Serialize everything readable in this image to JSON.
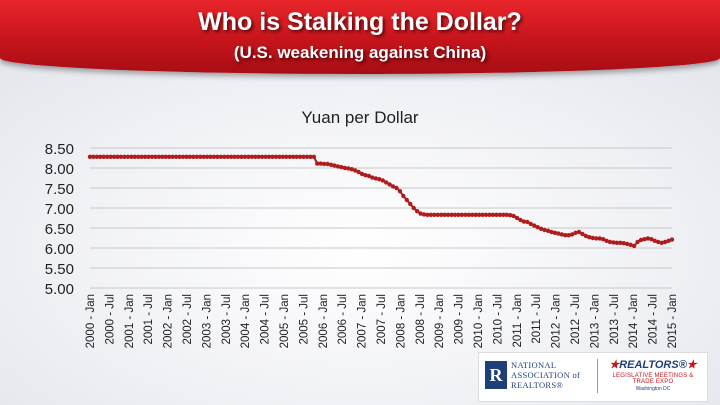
{
  "header": {
    "title": "Who is Stalking the Dollar?",
    "subtitle": "(U.S. weakening against China)"
  },
  "logos": {
    "nar_mark": "R",
    "nar_name": "NATIONAL ASSOCIATION of REALTORS®",
    "meeting_brand": "REALTORS®",
    "meeting_line": "LEGISLATIVE MEETINGS & TRADE EXPO",
    "meeting_sub": "Washington DC"
  },
  "colors": {
    "header_red": "#c5141b",
    "series": "#b01b1b",
    "grid": "#c8c8c8"
  },
  "chart_data": {
    "type": "line",
    "title": "Yuan per Dollar",
    "ylim": [
      5.0,
      8.5
    ],
    "yticks": [
      "8.50",
      "8.00",
      "7.50",
      "7.00",
      "6.50",
      "6.00",
      "5.50",
      "5.00"
    ],
    "grid": true,
    "x_labels": [
      "2000 - Jan",
      "2000 - Jul",
      "2001 - Jan",
      "2001 - Jul",
      "2002 - Jan",
      "2002 - Jul",
      "2003 - Jan",
      "2003 - Jul",
      "2004 - Jan",
      "2004 - Jul",
      "2005 - Jan",
      "2005 - Jul",
      "2006 - Jan",
      "2006 - Jul",
      "2007 - Jan",
      "2007 - Jul",
      "2008 - Jan",
      "2008 - Jul",
      "2009 - Jan",
      "2009 - Jul",
      "2010 - Jan",
      "2010 - Jul",
      "2011 - Jan",
      "2011 - Jul",
      "2012 - Jan",
      "2012 - Jul",
      "2013 - Jan",
      "2013 - Jul",
      "2014 - Jan",
      "2014 - Jul",
      "2015 - Jan"
    ],
    "series": [
      {
        "values": [
          8.28,
          8.28,
          8.28,
          8.28,
          8.28,
          8.28,
          8.28,
          8.28,
          8.28,
          8.28,
          8.28,
          8.28,
          8.28,
          8.28,
          8.28,
          8.28,
          8.28,
          8.28,
          8.28,
          8.28,
          8.28,
          8.28,
          8.28,
          8.28,
          8.28,
          8.28,
          8.28,
          8.28,
          8.28,
          8.28,
          8.28,
          8.28,
          8.28,
          8.28,
          8.28,
          8.28,
          8.28,
          8.28,
          8.28,
          8.28,
          8.28,
          8.28,
          8.28,
          8.28,
          8.28,
          8.28,
          8.28,
          8.28,
          8.28,
          8.28,
          8.28,
          8.28,
          8.28,
          8.28,
          8.28,
          8.28,
          8.28,
          8.28,
          8.28,
          8.28,
          8.28,
          8.28,
          8.28,
          8.28,
          8.28,
          8.28,
          8.11,
          8.11,
          8.1,
          8.1,
          8.08,
          8.06,
          8.04,
          8.02,
          8.0,
          7.99,
          7.97,
          7.94,
          7.9,
          7.85,
          7.82,
          7.8,
          7.76,
          7.74,
          7.72,
          7.69,
          7.64,
          7.59,
          7.54,
          7.5,
          7.42,
          7.3,
          7.2,
          7.1,
          7.0,
          6.92,
          6.86,
          6.84,
          6.83,
          6.83,
          6.83,
          6.83,
          6.83,
          6.83,
          6.83,
          6.83,
          6.83,
          6.83,
          6.83,
          6.83,
          6.83,
          6.83,
          6.83,
          6.83,
          6.83,
          6.83,
          6.83,
          6.83,
          6.83,
          6.83,
          6.83,
          6.83,
          6.82,
          6.8,
          6.75,
          6.7,
          6.66,
          6.65,
          6.6,
          6.56,
          6.52,
          6.48,
          6.45,
          6.43,
          6.4,
          6.38,
          6.36,
          6.34,
          6.32,
          6.32,
          6.34,
          6.38,
          6.4,
          6.35,
          6.3,
          6.27,
          6.25,
          6.24,
          6.24,
          6.22,
          6.18,
          6.15,
          6.14,
          6.13,
          6.13,
          6.12,
          6.1,
          6.08,
          6.05,
          6.15,
          6.2,
          6.22,
          6.24,
          6.22,
          6.18,
          6.15,
          6.13,
          6.15,
          6.18,
          6.21
        ]
      }
    ]
  }
}
